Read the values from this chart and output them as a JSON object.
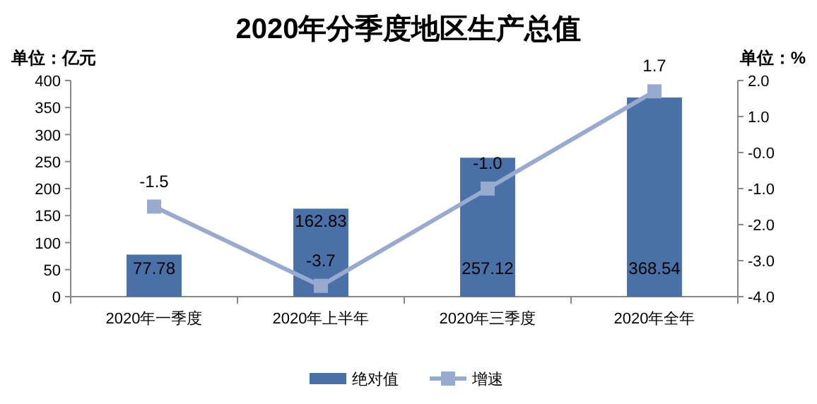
{
  "chart_data": {
    "type": "bar",
    "title": "2020年分季度地区生产总值",
    "ylabel": "单位：亿元",
    "y2label": "单位：%",
    "categories": [
      "2020年一季度",
      "2020年上半年",
      "2020年三季度",
      "2020年全年"
    ],
    "series": [
      {
        "name": "绝对值",
        "color": "#4a70a8",
        "values": [
          77.78,
          162.83,
          257.12,
          368.54
        ]
      },
      {
        "name": "增速",
        "type": "line",
        "axis": "y2",
        "color": "#98abcf",
        "values": [
          -1.5,
          -3.7,
          -1.0,
          1.7
        ],
        "value_labels": [
          "-1.5",
          "-3.7",
          "-1.0",
          "1.7"
        ]
      }
    ],
    "ylim": [
      0,
      400
    ],
    "yticks": [
      0,
      50,
      100,
      150,
      200,
      250,
      300,
      350,
      400
    ],
    "y2lim": [
      -4,
      2
    ],
    "y2ticks": [
      {
        "value": -4,
        "label": "-4.0"
      },
      {
        "value": -3,
        "label": "-3.0"
      },
      {
        "value": -2,
        "label": "-2.0"
      },
      {
        "value": -1,
        "label": "-1.0"
      },
      {
        "value": 0,
        "label": "-0.0"
      },
      {
        "value": 1,
        "label": "1.0"
      },
      {
        "value": 2,
        "label": "2.0"
      }
    ],
    "data_labels": true,
    "marker": "square",
    "grid": false,
    "legend": "bottom"
  }
}
